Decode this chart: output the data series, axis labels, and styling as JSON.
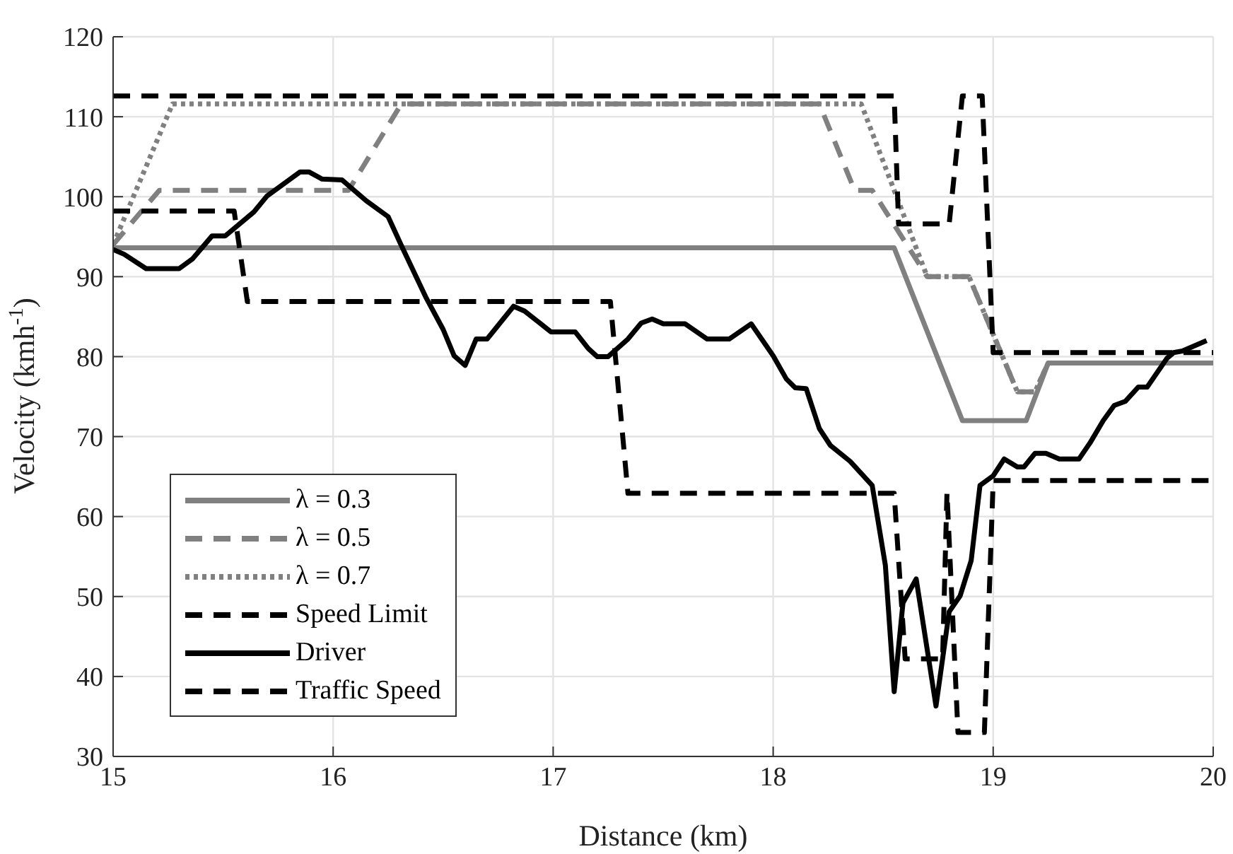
{
  "chart_data": {
    "type": "line",
    "xlabel": "Distance (km)",
    "ylabel": "Velocity (kmh$^{-1}$)",
    "xlim": [
      15,
      20
    ],
    "xticks": [
      15,
      16,
      17,
      18,
      19,
      20
    ],
    "ylim": [
      30,
      120
    ],
    "yticks": [
      30,
      40,
      50,
      60,
      70,
      80,
      90,
      100,
      110,
      120
    ],
    "grid": true,
    "legend": "bottom left",
    "marker": "none",
    "series": [
      {
        "name": "λ = 0.3",
        "color": "#808080",
        "line_style": "solid",
        "x": [
          15,
          18.55,
          18.86,
          19.15,
          19.25,
          20
        ],
        "values": [
          93.6,
          93.6,
          72,
          72,
          79.2,
          79.2
        ]
      },
      {
        "name": "λ = 0.5",
        "color": "#808080",
        "line_style": "dashed",
        "x": [
          15,
          15.21,
          16.07,
          16.31,
          18.21,
          18.37,
          18.45,
          18.7,
          18.89,
          19.11,
          19.19,
          19.25,
          20
        ],
        "values": [
          94,
          100.8,
          100.8,
          111.6,
          111.6,
          100.8,
          100.8,
          90,
          90,
          75.6,
          75.6,
          79.2,
          79.2
        ]
      },
      {
        "name": "λ = 0.7",
        "color": "#808080",
        "line_style": "dotted",
        "x": [
          15,
          15.27,
          18.4,
          18.7,
          18.89,
          19.11,
          19.19,
          19.25,
          20
        ],
        "values": [
          94,
          111.6,
          111.6,
          90,
          90,
          75.6,
          75.6,
          79.2,
          79.2
        ]
      },
      {
        "name": "Speed Limit",
        "color": "#000000",
        "line_style": "dashed",
        "x": [
          15,
          18.55,
          18.57,
          18.8,
          18.86,
          18.95,
          19.0,
          20
        ],
        "values": [
          112.6,
          112.6,
          96.6,
          96.6,
          112.6,
          112.6,
          80.5,
          80.5
        ]
      },
      {
        "name": "Driver",
        "color": "#000000",
        "line_style": "solid",
        "x": [
          15,
          15.05,
          15.15,
          15.3,
          15.36,
          15.45,
          15.51,
          15.64,
          15.7,
          15.85,
          15.89,
          15.95,
          16.04,
          16.15,
          16.25,
          16.31,
          16.42,
          16.5,
          16.55,
          16.6,
          16.65,
          16.7,
          16.82,
          16.87,
          16.99,
          17.1,
          17.16,
          17.2,
          17.25,
          17.34,
          17.4,
          17.45,
          17.5,
          17.6,
          17.7,
          17.8,
          17.9,
          18.0,
          18.06,
          18.1,
          18.15,
          18.21,
          18.26,
          18.35,
          18.45,
          18.51,
          18.55,
          18.59,
          18.65,
          18.7,
          18.74,
          18.8,
          18.85,
          18.9,
          18.94,
          19.0,
          19.05,
          19.11,
          19.14,
          19.19,
          19.24,
          19.3,
          19.39,
          19.44,
          19.5,
          19.55,
          19.6,
          19.66,
          19.7,
          19.79,
          19.82,
          19.86,
          19.97
        ],
        "values": [
          93.4,
          92.8,
          91,
          91,
          92.2,
          95.1,
          95.1,
          98.1,
          100.1,
          103.1,
          103.1,
          102.2,
          102.1,
          99.5,
          97.5,
          93.9,
          87.5,
          83.4,
          80.1,
          78.9,
          82.2,
          82.2,
          86.3,
          85.7,
          83.1,
          83.1,
          81,
          80,
          80,
          82.2,
          84.2,
          84.7,
          84.1,
          84.1,
          82.2,
          82.2,
          84.1,
          80.1,
          77.2,
          76.1,
          76,
          71,
          68.9,
          66.9,
          63.9,
          53.9,
          38.1,
          49.2,
          52.2,
          43.4,
          36.3,
          48.1,
          50.1,
          54.5,
          63.9,
          65.1,
          67.2,
          66.2,
          66.2,
          67.9,
          67.9,
          67.2,
          67.2,
          69.2,
          72,
          73.9,
          74.4,
          76.2,
          76.2,
          79.8,
          80.5,
          80.7,
          82
        ]
      },
      {
        "name": "Traffic Speed",
        "color": "#000000",
        "line_style": "dashed",
        "x": [
          15,
          15.55,
          15.61,
          17.26,
          17.34,
          18.55,
          18.6,
          18.77,
          18.79,
          18.84,
          18.96,
          19.0,
          20
        ],
        "values": [
          98.2,
          98.2,
          86.9,
          86.9,
          62.9,
          62.9,
          42.2,
          42.2,
          63,
          33,
          33,
          64.5,
          64.5
        ]
      }
    ]
  }
}
